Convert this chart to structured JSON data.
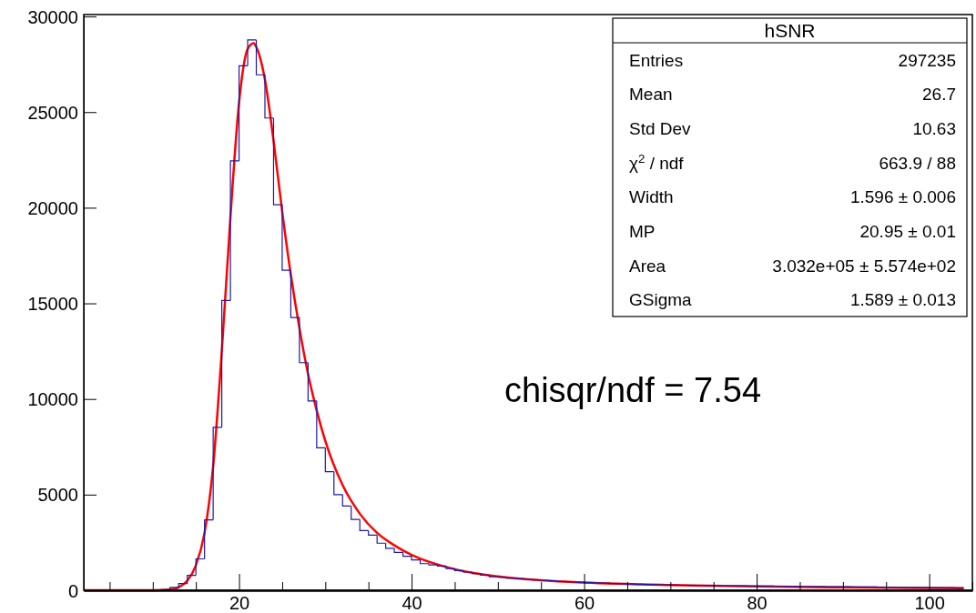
{
  "chart_data": {
    "type": "histogram",
    "xlim": [
      2,
      105
    ],
    "ylim": [
      0,
      30100
    ],
    "xticks": [
      {
        "value": 5,
        "label": null
      },
      {
        "value": 10,
        "label": null
      },
      {
        "value": 15,
        "label": null
      },
      20,
      {
        "value": 25,
        "label": null
      },
      {
        "value": 30,
        "label": null
      },
      {
        "value": 35,
        "label": null
      },
      40,
      {
        "value": 45,
        "label": null
      },
      {
        "value": 50,
        "label": null
      },
      {
        "value": 55,
        "label": null
      },
      60,
      {
        "value": 65,
        "label": null
      },
      {
        "value": 70,
        "label": null
      },
      {
        "value": 75,
        "label": null
      },
      80,
      {
        "value": 85,
        "label": null
      },
      {
        "value": 90,
        "label": null
      },
      {
        "value": 95,
        "label": null
      },
      100,
      {
        "value": 105,
        "label": null
      }
    ],
    "yticks": [
      0,
      5000,
      10000,
      15000,
      20000,
      25000,
      30000
    ],
    "series": [
      {
        "color": "#1a1aa6",
        "bins": [
          11,
          12,
          13,
          14,
          15,
          16,
          17,
          18,
          19,
          20,
          21,
          22,
          23,
          24,
          25,
          26,
          27,
          28,
          29,
          30,
          31,
          32,
          33,
          34,
          35,
          36,
          37,
          38,
          39,
          40,
          41,
          42,
          43,
          44,
          45,
          46,
          47,
          48,
          49,
          50,
          51,
          52,
          53,
          54,
          55,
          56,
          57,
          58,
          59,
          60,
          61,
          62,
          63,
          64,
          65,
          66,
          67,
          68,
          69,
          70,
          71,
          72,
          73,
          74,
          75,
          76,
          77,
          78,
          79,
          80,
          81,
          82,
          83,
          84,
          85,
          86,
          87,
          88,
          89,
          90,
          91,
          92,
          93,
          94,
          95,
          96,
          97,
          98,
          99,
          100,
          101,
          102,
          103,
          104
        ],
        "values": [
          30,
          150,
          350,
          780,
          1640,
          3680,
          8520,
          15150,
          22450,
          27420,
          28770,
          26950,
          24690,
          20160,
          16730,
          14260,
          11900,
          9900,
          7450,
          6200,
          5000,
          4400,
          3700,
          3120,
          2880,
          2460,
          2190,
          1980,
          1780,
          1590,
          1390,
          1330,
          1270,
          1140,
          1030,
          950,
          870,
          790,
          710,
          680,
          640,
          600,
          570,
          540,
          510,
          490,
          460,
          440,
          420,
          400,
          385,
          370,
          355,
          340,
          330,
          315,
          300,
          290,
          280,
          270,
          262,
          255,
          250,
          245,
          241,
          237,
          233,
          229,
          225,
          221,
          217,
          213,
          209,
          205,
          201,
          197,
          193,
          189,
          185,
          181,
          177,
          173,
          169,
          165,
          161,
          157,
          153,
          149,
          145,
          141,
          137,
          133,
          129
        ]
      },
      {
        "type": "line",
        "color": "#ff0000",
        "x": [
          2,
          10,
          12,
          13,
          14,
          15,
          16,
          17,
          18,
          19,
          20,
          21,
          21.7,
          22,
          23,
          24,
          25,
          26,
          27,
          28,
          29,
          30,
          32,
          34,
          36,
          38,
          40,
          45,
          50,
          55,
          60,
          70,
          80,
          90,
          100,
          104
        ],
        "values": [
          0,
          0,
          30,
          150,
          500,
          1300,
          3000,
          6500,
          12500,
          19500,
          25500,
          28300,
          28600,
          28400,
          26700,
          23500,
          19800,
          16500,
          13700,
          11300,
          9400,
          7800,
          5500,
          4000,
          3000,
          2350,
          1850,
          1100,
          720,
          520,
          400,
          270,
          200,
          150,
          120,
          110
        ]
      }
    ],
    "annotations": [
      "chisqr/ndf = 7.54",
      "hSNR",
      "Entries",
      "297235",
      "Mean",
      "26.7",
      "Std Dev",
      "10.63",
      "χ$^{2}$ / ndf",
      "663.9 / 88",
      "Width",
      "1.596 ± 0.006",
      "MP",
      "20.95 ± 0.01",
      "Area",
      "3.032e+05 ± 5.574e+02",
      "GSigma",
      "1.589 ± 0.013"
    ]
  }
}
